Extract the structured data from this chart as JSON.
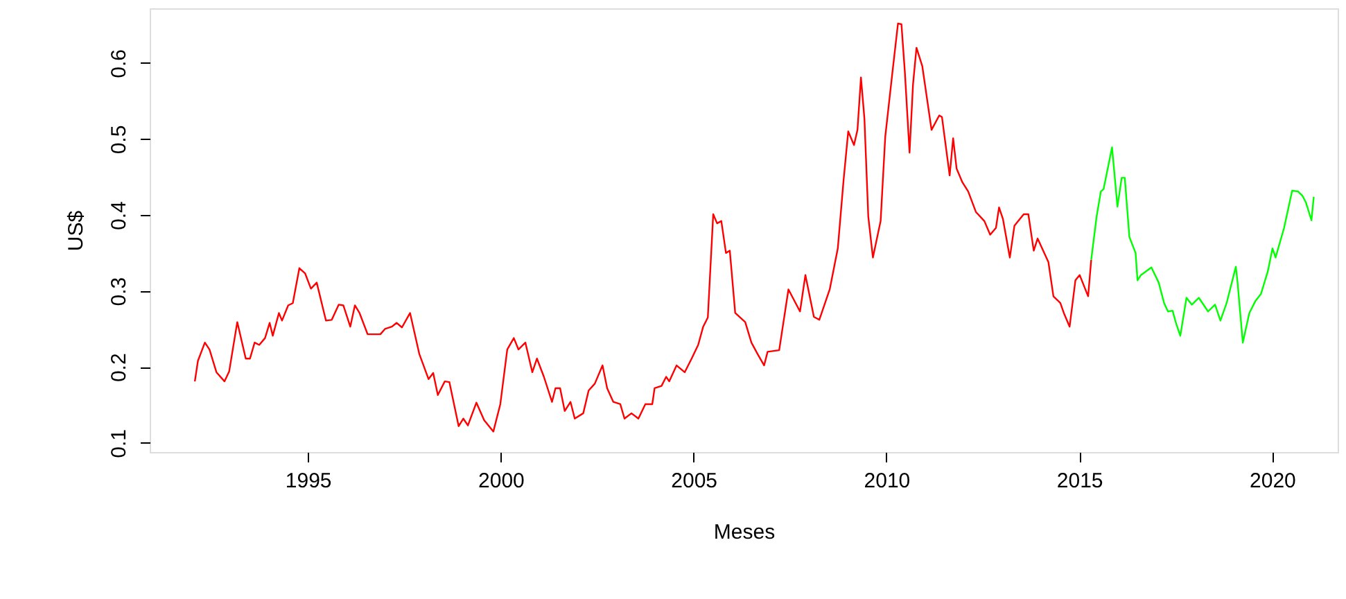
{
  "chart_data": {
    "type": "line",
    "xlabel": "Meses",
    "ylabel": "US$",
    "xlim": [
      1990.9,
      2021.7
    ],
    "ylim": [
      0.088,
      0.672
    ],
    "xticks": [
      1995,
      2000,
      2005,
      2010,
      2015,
      2020
    ],
    "yticks": [
      0.1,
      0.2,
      0.3,
      0.4,
      0.5,
      0.6
    ],
    "grid": false,
    "marker": "none",
    "line_style": "solid",
    "series": [
      {
        "color": "#ff0000",
        "x": [
          1992.07,
          1992.15,
          1992.33,
          1992.45,
          1992.63,
          1992.84,
          1992.96,
          1993.17,
          1993.39,
          1993.5,
          1993.62,
          1993.74,
          1993.89,
          1994.01,
          1994.09,
          1994.25,
          1994.33,
          1994.49,
          1994.61,
          1994.78,
          1994.93,
          1995.08,
          1995.23,
          1995.47,
          1995.62,
          1995.8,
          1995.92,
          1996.1,
          1996.22,
          1996.34,
          1996.55,
          1996.88,
          1997.0,
          1997.18,
          1997.3,
          1997.44,
          1997.65,
          1997.89,
          1998.13,
          1998.25,
          1998.37,
          1998.55,
          1998.67,
          1998.91,
          1999.03,
          1999.15,
          1999.37,
          1999.57,
          1999.81,
          1999.99,
          2000.17,
          2000.34,
          2000.46,
          2000.64,
          2000.82,
          2000.94,
          2001.12,
          2001.33,
          2001.42,
          2001.54,
          2001.66,
          2001.81,
          2001.92,
          2002.14,
          2002.28,
          2002.44,
          2002.64,
          2002.76,
          2002.92,
          2003.1,
          2003.21,
          2003.39,
          2003.57,
          2003.75,
          2003.93,
          2003.99,
          2004.17,
          2004.29,
          2004.37,
          2004.56,
          2004.77,
          2004.95,
          2005.12,
          2005.25,
          2005.37,
          2005.51,
          2005.61,
          2005.72,
          2005.84,
          2005.94,
          2006.08,
          2006.34,
          2006.5,
          2006.66,
          2006.83,
          2006.92,
          2007.22,
          2007.46,
          2007.76,
          2007.9,
          2008.12,
          2008.26,
          2008.53,
          2008.74,
          2008.89,
          2009.01,
          2009.16,
          2009.25,
          2009.34,
          2009.43,
          2009.53,
          2009.65,
          2009.85,
          2009.97,
          2010.15,
          2010.3,
          2010.39,
          2010.48,
          2010.6,
          2010.69,
          2010.78,
          2010.93,
          2011.17,
          2011.37,
          2011.44,
          2011.64,
          2011.73,
          2011.82,
          2011.97,
          2012.12,
          2012.32,
          2012.54,
          2012.69,
          2012.84,
          2012.92,
          2013.02,
          2013.2,
          2013.32,
          2013.56,
          2013.68,
          2013.82,
          2013.92,
          2014.2,
          2014.33,
          2014.51,
          2014.6,
          2014.75,
          2014.9,
          2015.01,
          2015.23,
          2015.31
        ],
        "values": [
          0.181,
          0.208,
          0.232,
          0.223,
          0.193,
          0.181,
          0.194,
          0.259,
          0.211,
          0.211,
          0.232,
          0.229,
          0.238,
          0.258,
          0.241,
          0.271,
          0.261,
          0.281,
          0.284,
          0.33,
          0.323,
          0.303,
          0.311,
          0.261,
          0.262,
          0.282,
          0.281,
          0.253,
          0.281,
          0.271,
          0.243,
          0.243,
          0.25,
          0.253,
          0.258,
          0.252,
          0.271,
          0.217,
          0.184,
          0.192,
          0.163,
          0.181,
          0.18,
          0.122,
          0.132,
          0.123,
          0.153,
          0.13,
          0.115,
          0.151,
          0.223,
          0.238,
          0.223,
          0.232,
          0.193,
          0.211,
          0.187,
          0.154,
          0.172,
          0.172,
          0.142,
          0.154,
          0.132,
          0.139,
          0.169,
          0.178,
          0.202,
          0.172,
          0.154,
          0.151,
          0.132,
          0.139,
          0.132,
          0.151,
          0.151,
          0.172,
          0.175,
          0.187,
          0.181,
          0.202,
          0.193,
          0.211,
          0.229,
          0.253,
          0.265,
          0.401,
          0.389,
          0.392,
          0.35,
          0.353,
          0.271,
          0.259,
          0.232,
          0.217,
          0.202,
          0.22,
          0.222,
          0.302,
          0.273,
          0.321,
          0.266,
          0.262,
          0.302,
          0.356,
          0.446,
          0.51,
          0.492,
          0.512,
          0.581,
          0.527,
          0.398,
          0.344,
          0.392,
          0.503,
          0.585,
          0.652,
          0.651,
          0.587,
          0.482,
          0.572,
          0.62,
          0.596,
          0.512,
          0.531,
          0.529,
          0.452,
          0.501,
          0.461,
          0.443,
          0.431,
          0.404,
          0.392,
          0.374,
          0.383,
          0.41,
          0.395,
          0.344,
          0.386,
          0.401,
          0.401,
          0.353,
          0.369,
          0.338,
          0.293,
          0.284,
          0.271,
          0.253,
          0.314,
          0.321,
          0.293,
          0.341
        ]
      },
      {
        "color": "#00ff00",
        "x": [
          2015.31,
          2015.45,
          2015.56,
          2015.63,
          2015.75,
          2015.85,
          2015.99,
          2016.1,
          2016.18,
          2016.3,
          2016.46,
          2016.51,
          2016.6,
          2016.87,
          2017.06,
          2017.2,
          2017.3,
          2017.42,
          2017.5,
          2017.62,
          2017.78,
          2017.92,
          2018.1,
          2018.34,
          2018.52,
          2018.66,
          2018.82,
          2019.06,
          2019.11,
          2019.24,
          2019.41,
          2019.57,
          2019.71,
          2019.89,
          2020.01,
          2020.09,
          2020.31,
          2020.52,
          2020.67,
          2020.79,
          2020.88,
          2021.02,
          2021.08
        ],
        "values": [
          0.341,
          0.398,
          0.431,
          0.434,
          0.464,
          0.489,
          0.411,
          0.449,
          0.449,
          0.371,
          0.35,
          0.314,
          0.321,
          0.331,
          0.311,
          0.284,
          0.273,
          0.274,
          0.259,
          0.241,
          0.291,
          0.282,
          0.291,
          0.273,
          0.282,
          0.261,
          0.284,
          0.332,
          0.308,
          0.232,
          0.271,
          0.287,
          0.296,
          0.326,
          0.356,
          0.344,
          0.383,
          0.432,
          0.431,
          0.425,
          0.416,
          0.393,
          0.424
        ]
      }
    ]
  }
}
